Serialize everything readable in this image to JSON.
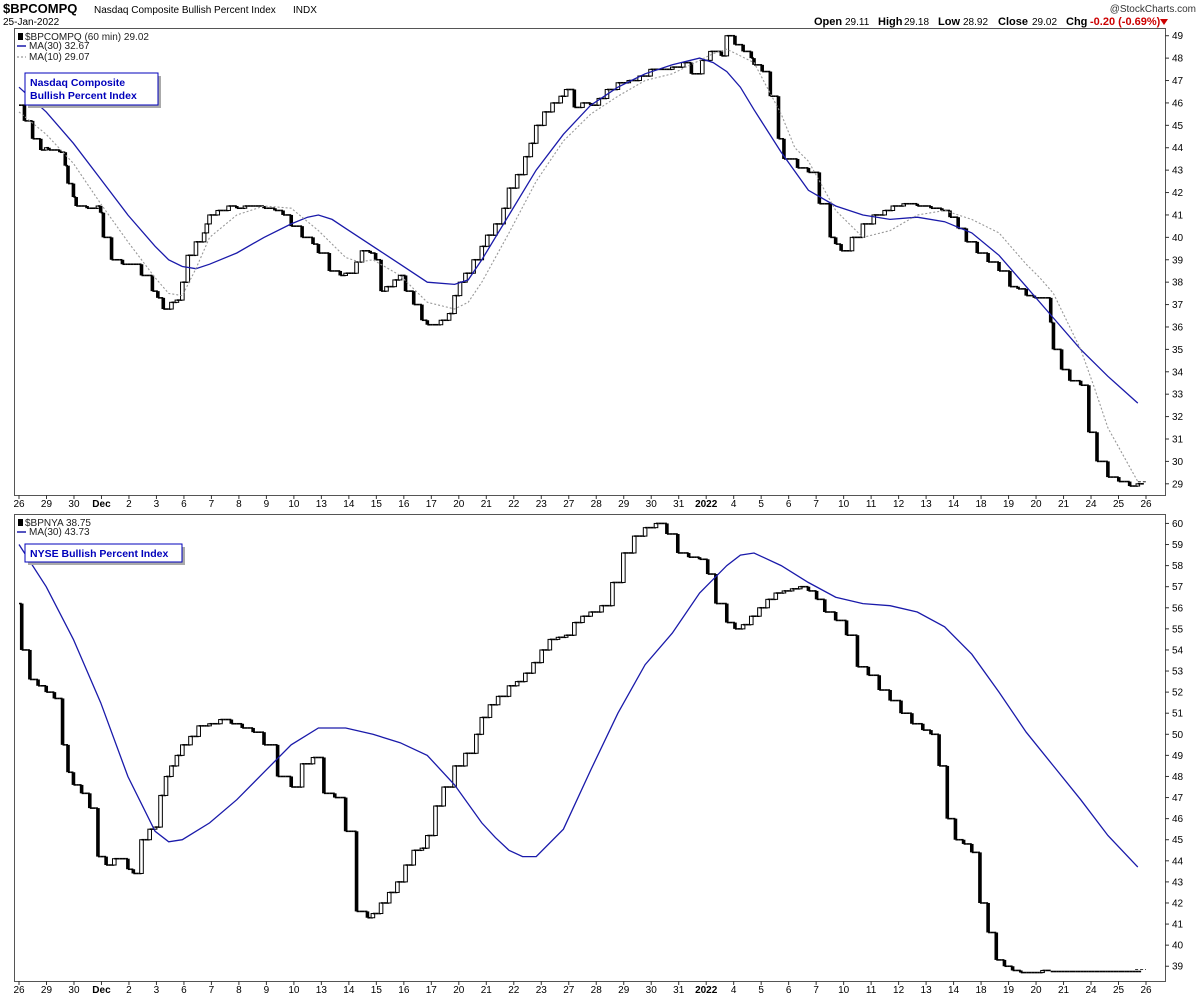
{
  "header": {
    "symbol": "$BPCOMPQ",
    "name": "Nasdaq Composite Bullish Percent Index",
    "exchange": "INDX",
    "date": "25-Jan-2022",
    "watermark": "@StockCharts.com",
    "open_label": "Open",
    "open": "29.11",
    "high_label": "High",
    "high": "29.18",
    "low_label": "Low",
    "low": "28.92",
    "close_label": "Close",
    "close": "29.02",
    "chg_label": "Chg",
    "chg": "-0.20 (-0.69%)"
  },
  "colors": {
    "ma30": "#1a1aaa",
    "ma10": "#999999",
    "bar": "#000000",
    "box_fill": "#ffffff",
    "annotation": "#0000bb",
    "up_marker": "#cc0000"
  },
  "x_axis": {
    "labels": [
      "26",
      "29",
      "30",
      "Dec",
      "2",
      "3",
      "6",
      "7",
      "8",
      "9",
      "10",
      "13",
      "14",
      "15",
      "16",
      "17",
      "20",
      "21",
      "22",
      "23",
      "27",
      "28",
      "29",
      "30",
      "31",
      "2022",
      "4",
      "5",
      "6",
      "7",
      "10",
      "11",
      "12",
      "13",
      "14",
      "18",
      "19",
      "20",
      "21",
      "24",
      "25",
      "26"
    ],
    "bold": [
      "Dec",
      "2022"
    ]
  },
  "chart_data": [
    {
      "type": "line",
      "title": "Nasdaq Composite Bullish Percent Index",
      "legend": [
        {
          "label": "$BPCOMPQ (60 min) 29.02",
          "style": "bar"
        },
        {
          "label": "MA(30) 32.67",
          "style": "solid"
        },
        {
          "label": "MA(10) 29.07",
          "style": "dotted"
        }
      ],
      "annotation": [
        "Nasdaq Composite",
        "Bullish Percent Index"
      ],
      "ylim": [
        28.5,
        49.3
      ],
      "y_ticks": [
        29,
        30,
        31,
        32,
        33,
        34,
        35,
        36,
        37,
        38,
        39,
        40,
        41,
        42,
        43,
        44,
        45,
        46,
        47,
        48,
        49
      ],
      "x_range": [
        0,
        41.4
      ],
      "series": [
        {
          "name": "$BPCOMPQ",
          "style": "step",
          "x": [
            0.0,
            0.2,
            0.5,
            0.8,
            1.0,
            1.1,
            1.5,
            1.7,
            1.8,
            2.0,
            2.1,
            2.5,
            2.9,
            3.0,
            3.1,
            3.4,
            3.8,
            4.1,
            4.5,
            4.9,
            5.1,
            5.3,
            5.6,
            5.8,
            6.0,
            6.2,
            6.5,
            6.8,
            6.9,
            7.0,
            7.3,
            7.7,
            8.0,
            8.3,
            8.6,
            9.0,
            9.4,
            9.7,
            10.0,
            10.4,
            10.8,
            11.0,
            11.4,
            11.8,
            12.0,
            12.4,
            12.6,
            12.9,
            13.1,
            13.3,
            13.5,
            13.8,
            14.0,
            14.2,
            14.5,
            14.8,
            15.0,
            15.2,
            15.5,
            15.8,
            16.0,
            16.2,
            16.4,
            16.7,
            17.0,
            17.2,
            17.5,
            17.8,
            18.0,
            18.3,
            18.6,
            18.8,
            19.0,
            19.3,
            19.6,
            19.9,
            20.1,
            20.4,
            20.7,
            21.0,
            21.3,
            21.6,
            22.0,
            22.4,
            22.8,
            23.2,
            23.6,
            24.0,
            24.4,
            24.7,
            25.1,
            25.4,
            25.8,
            26.0,
            26.3,
            26.6,
            26.9,
            27.0,
            27.3,
            27.6,
            27.9,
            28.1,
            28.3,
            28.6,
            29.0,
            29.4,
            29.8,
            30.0,
            30.2,
            30.6,
            31.0,
            31.4,
            31.8,
            32.1,
            32.5,
            33.0,
            33.5,
            33.9,
            34.2,
            34.5,
            34.8,
            35.2,
            35.6,
            36.0,
            36.4,
            36.7,
            37.0,
            37.3,
            37.6,
            37.9,
            38.0,
            38.3,
            38.6,
            39.0,
            39.3,
            39.6,
            40.0,
            40.4,
            40.8,
            41.1
          ],
          "values": [
            45.9,
            45.2,
            44.4,
            43.9,
            44.0,
            43.9,
            43.8,
            43.2,
            42.4,
            41.8,
            41.4,
            41.3,
            41.4,
            41.1,
            40.0,
            39.0,
            38.8,
            38.8,
            38.3,
            37.6,
            37.3,
            36.8,
            37.1,
            37.2,
            38.0,
            39.2,
            39.8,
            40.2,
            40.6,
            41.0,
            41.2,
            41.4,
            41.3,
            41.4,
            41.4,
            41.3,
            41.2,
            41.0,
            40.5,
            40.0,
            39.7,
            39.3,
            38.5,
            38.3,
            38.4,
            38.9,
            39.4,
            39.3,
            39.0,
            37.6,
            37.8,
            38.1,
            38.3,
            37.6,
            37.0,
            36.3,
            36.1,
            36.1,
            36.3,
            36.6,
            37.4,
            38.0,
            38.4,
            39.0,
            39.6,
            40.1,
            40.6,
            41.3,
            42.2,
            42.8,
            43.6,
            44.2,
            45.0,
            45.6,
            46.0,
            46.3,
            46.6,
            45.8,
            46.0,
            45.9,
            46.2,
            46.6,
            46.9,
            47.0,
            47.2,
            47.5,
            47.5,
            47.6,
            47.8,
            47.3,
            47.9,
            48.3,
            48.1,
            49.0,
            48.6,
            48.3,
            48.0,
            47.7,
            47.4,
            46.3,
            44.4,
            43.5,
            43.5,
            43.1,
            42.9,
            41.5,
            40.0,
            39.7,
            39.4,
            40.0,
            40.6,
            41.0,
            41.2,
            41.4,
            41.5,
            41.4,
            41.3,
            41.2,
            40.9,
            40.4,
            39.8,
            39.3,
            38.9,
            38.5,
            37.8,
            37.7,
            37.4,
            37.3,
            37.3,
            36.2,
            35.0,
            34.1,
            33.6,
            33.4,
            31.3,
            30.0,
            29.3,
            29.1,
            28.9,
            29.0
          ]
        },
        {
          "name": "MA(30)",
          "style": "line",
          "x": [
            0,
            1,
            2,
            3,
            4,
            5,
            5.5,
            6,
            6.5,
            7,
            8,
            9,
            10,
            10.6,
            11,
            11.5,
            12,
            13,
            14,
            15,
            16,
            16.5,
            17,
            18,
            19,
            20,
            21,
            22,
            23,
            24,
            25,
            25.5,
            26,
            26.5,
            27,
            28,
            29,
            30,
            31,
            32,
            33,
            34,
            35,
            36,
            37,
            38,
            39,
            40,
            41.1
          ],
          "values": [
            46.7,
            45.6,
            44.2,
            42.6,
            41.0,
            39.6,
            39.0,
            38.7,
            38.6,
            38.8,
            39.3,
            40.0,
            40.6,
            40.9,
            41.0,
            40.8,
            40.4,
            39.6,
            38.8,
            38.0,
            37.9,
            38.1,
            39.0,
            41.0,
            43.0,
            44.6,
            45.9,
            46.7,
            47.3,
            47.7,
            48.0,
            47.8,
            47.4,
            46.7,
            45.7,
            43.8,
            42.1,
            41.4,
            41.0,
            40.8,
            40.9,
            40.7,
            40.2,
            39.2,
            37.8,
            36.4,
            35.0,
            33.8,
            32.6
          ]
        },
        {
          "name": "MA(10)",
          "style": "dotted",
          "x": [
            0,
            1,
            2,
            3,
            4,
            5,
            5.5,
            6,
            6.5,
            7,
            8,
            9,
            10,
            11,
            12,
            12.5,
            13,
            14,
            15,
            16,
            16.5,
            17,
            18,
            19,
            20,
            21,
            22,
            23,
            24,
            25,
            25.5,
            26,
            27,
            28,
            28.5,
            29,
            29.5,
            30,
            31,
            32,
            33,
            34,
            35,
            36,
            37,
            37.5,
            38,
            39,
            39.5,
            40,
            41.1
          ],
          "values": [
            45.6,
            44.6,
            43.3,
            41.5,
            39.8,
            38.2,
            37.5,
            37.4,
            38.6,
            40.0,
            41.0,
            41.4,
            41.3,
            40.3,
            39.1,
            38.9,
            39.0,
            38.3,
            37.1,
            36.8,
            37.1,
            38.0,
            40.2,
            42.5,
            44.3,
            45.5,
            46.3,
            47.0,
            47.3,
            47.9,
            48.2,
            48.4,
            47.8,
            45.5,
            44.0,
            43.4,
            42.3,
            41.2,
            40.0,
            40.3,
            41.0,
            41.2,
            40.8,
            40.2,
            38.8,
            38.2,
            37.5,
            35.0,
            33.3,
            31.5,
            29.1
          ]
        }
      ]
    },
    {
      "type": "line",
      "title": "NYSE Bullish Percent Index",
      "legend": [
        {
          "label": "$BPNYA 38.75",
          "style": "bar"
        },
        {
          "label": "MA(30) 43.73",
          "style": "solid"
        }
      ],
      "annotation": [
        "NYSE Bullish Percent Index"
      ],
      "ylim": [
        38.3,
        60.4
      ],
      "y_ticks": [
        39,
        40,
        41,
        42,
        43,
        44,
        45,
        46,
        47,
        48,
        49,
        50,
        51,
        52,
        53,
        54,
        55,
        56,
        57,
        58,
        59,
        60
      ],
      "x_range": [
        0,
        41.4
      ],
      "series": [
        {
          "name": "$BPNYA",
          "style": "step",
          "x": [
            0.0,
            0.1,
            0.4,
            0.7,
            1.0,
            1.3,
            1.6,
            1.8,
            2.0,
            2.3,
            2.6,
            2.9,
            3.2,
            3.5,
            3.7,
            4.0,
            4.2,
            4.5,
            4.8,
            5.0,
            5.2,
            5.4,
            5.6,
            5.8,
            6.0,
            6.3,
            6.6,
            7.0,
            7.4,
            7.8,
            8.2,
            8.6,
            9.0,
            9.5,
            10.0,
            10.4,
            10.8,
            11.2,
            11.6,
            12.0,
            12.4,
            12.8,
            13.0,
            13.3,
            13.6,
            13.9,
            14.2,
            14.5,
            14.8,
            15.0,
            15.3,
            15.6,
            16.0,
            16.4,
            16.8,
            17.0,
            17.3,
            17.6,
            18.0,
            18.3,
            18.6,
            18.9,
            19.2,
            19.5,
            19.8,
            20.1,
            20.4,
            20.7,
            21.0,
            21.4,
            21.8,
            22.2,
            22.6,
            23.0,
            23.4,
            23.8,
            24.2,
            24.6,
            25.0,
            25.3,
            25.6,
            26.0,
            26.3,
            26.6,
            26.9,
            27.2,
            27.5,
            27.8,
            28.1,
            28.4,
            28.7,
            29.0,
            29.3,
            29.6,
            30.0,
            30.4,
            30.8,
            31.2,
            31.6,
            32.0,
            32.4,
            32.8,
            33.2,
            33.5,
            33.8,
            34.1,
            34.4,
            34.7,
            35.0,
            35.3,
            35.6,
            35.9,
            36.2,
            36.5,
            36.8,
            37.0,
            37.3,
            37.6,
            37.9,
            38.2,
            38.5,
            38.8,
            39.1,
            39.4,
            39.7,
            40.0,
            40.3,
            40.6,
            41.0
          ],
          "values": [
            56.2,
            54.0,
            52.6,
            52.3,
            52.0,
            51.7,
            49.5,
            48.2,
            47.6,
            47.2,
            46.5,
            44.2,
            43.8,
            44.1,
            44.1,
            43.6,
            43.4,
            45.0,
            45.5,
            45.6,
            47.1,
            48.0,
            48.5,
            49.0,
            49.5,
            49.9,
            50.4,
            50.5,
            50.7,
            50.5,
            50.3,
            50.1,
            49.5,
            48.0,
            47.5,
            48.6,
            48.9,
            47.2,
            47.0,
            45.4,
            41.6,
            41.3,
            41.5,
            42.0,
            42.5,
            43.0,
            43.8,
            44.5,
            44.6,
            45.2,
            46.6,
            47.5,
            48.5,
            49.1,
            50.0,
            50.8,
            51.4,
            51.8,
            52.3,
            52.5,
            52.9,
            53.4,
            54.0,
            54.5,
            54.6,
            54.7,
            55.3,
            55.6,
            55.8,
            56.1,
            57.2,
            58.6,
            59.4,
            59.8,
            60.0,
            59.5,
            58.6,
            58.4,
            58.3,
            57.6,
            56.2,
            55.3,
            55.0,
            55.2,
            55.6,
            56.0,
            56.4,
            56.7,
            56.8,
            56.9,
            57.0,
            56.8,
            56.4,
            55.8,
            55.4,
            54.7,
            53.2,
            52.8,
            52.1,
            51.6,
            51.0,
            50.5,
            50.2,
            50.0,
            48.5,
            46.0,
            45.0,
            44.8,
            44.4,
            42.0,
            40.6,
            39.3,
            39.0,
            38.8,
            38.7,
            38.7,
            38.7,
            38.8,
            38.75,
            38.75,
            38.75,
            38.75,
            38.75,
            38.75,
            38.75,
            38.75,
            38.75,
            38.75,
            38.75
          ]
        },
        {
          "name": "MA(30)",
          "style": "line",
          "x": [
            0,
            1,
            2,
            3,
            4,
            5,
            5.5,
            6,
            7,
            8,
            9,
            10,
            11,
            12,
            13,
            14,
            15,
            16,
            17,
            17.5,
            18,
            18.5,
            19,
            20,
            21,
            22,
            23,
            24,
            25,
            26,
            26.5,
            27,
            28,
            29,
            30,
            31,
            32,
            33,
            34,
            35,
            36,
            37,
            38,
            39,
            40,
            41.1
          ],
          "values": [
            59.0,
            57.0,
            54.5,
            51.5,
            48.0,
            45.4,
            44.9,
            45.0,
            45.8,
            46.9,
            48.2,
            49.5,
            50.3,
            50.3,
            50.0,
            49.6,
            49.0,
            47.6,
            45.8,
            45.1,
            44.5,
            44.2,
            44.2,
            45.5,
            48.3,
            51.0,
            53.3,
            54.8,
            56.7,
            58.0,
            58.5,
            58.6,
            58.0,
            57.2,
            56.5,
            56.2,
            56.1,
            55.8,
            55.1,
            53.8,
            52.0,
            50.1,
            48.5,
            46.9,
            45.2,
            43.7
          ]
        }
      ]
    }
  ]
}
